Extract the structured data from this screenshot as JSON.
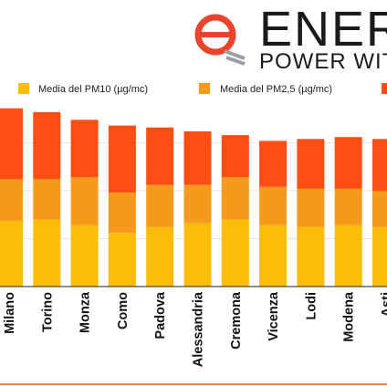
{
  "brand": {
    "name": "ENERG",
    "tagline": "POWER WITH",
    "logo_color": "#e8432c"
  },
  "legend": {
    "items": [
      {
        "label": "Media del PM10 (µg/mc)",
        "color": "#fbbd0a"
      },
      {
        "label": "Media del PM2,5 (µg/mc)",
        "color": "#f59a1c"
      },
      {
        "label": "",
        "color": "#fb4e14"
      }
    ]
  },
  "footer_rule_color": "#f0873c",
  "chart_data": {
    "type": "bar",
    "stacked": true,
    "categories": [
      "Milano",
      "Torino",
      "Monza",
      "Como",
      "Padova",
      "Alessandria",
      "Cremona",
      "Vicenza",
      "Lodi",
      "Modena",
      "Asti"
    ],
    "series": [
      {
        "name": "Media del PM10 (µg/mc)",
        "color": "#fbbd0a",
        "values": [
          34,
          35,
          32,
          28,
          31,
          33,
          35,
          32,
          31,
          32,
          31
        ]
      },
      {
        "name": "Media del PM2,5 (µg/mc)",
        "color": "#f59a1c",
        "values": [
          22,
          21,
          25,
          21,
          22,
          20,
          22,
          20,
          20,
          19,
          19
        ]
      },
      {
        "name": "",
        "color": "#fb4e14",
        "values": [
          37,
          35,
          30,
          35,
          30,
          28,
          22,
          24,
          26,
          27,
          27
        ]
      }
    ],
    "ylim": [
      0,
      100
    ],
    "grid": true,
    "legend_position": "top"
  }
}
